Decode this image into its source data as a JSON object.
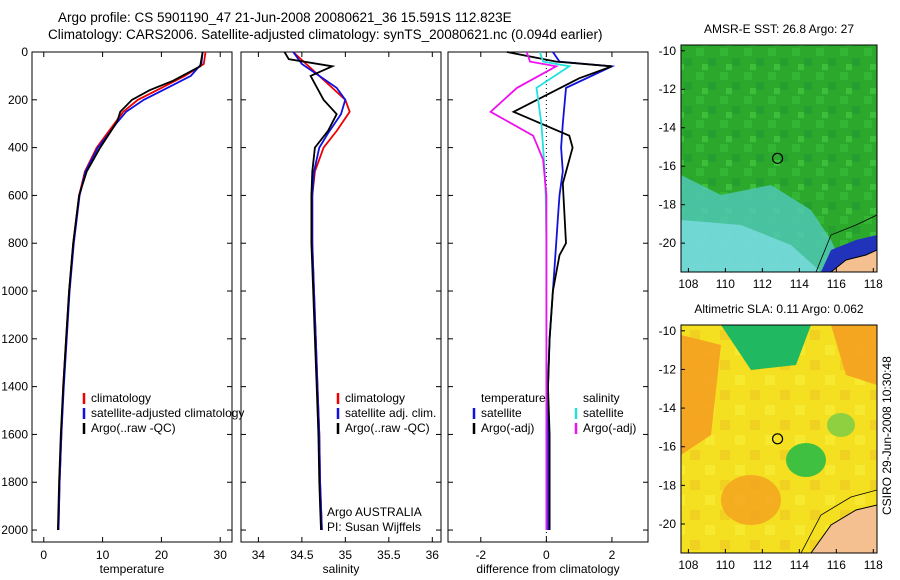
{
  "header": {
    "line1": "Argo profile: CS 5901190_47 21-Jun-2008 20080621_36 15.591S 112.823E",
    "line2": "Climatology: CARS2006. Satellite-adjusted climatology: synTS_20080621.nc (0.094d earlier)"
  },
  "side_stamp": "CSIRO 29-Jun-2008 10:30:48",
  "colors": {
    "climatology": "#ee0000",
    "satellite": "#1111dd",
    "argo": "#000000",
    "sal_satellite": "#22e0e0",
    "sal_argo": "#ee11ee",
    "land": "#f5c090"
  },
  "chart_data": [
    {
      "type": "line",
      "panel": "temperature",
      "xlabel": "temperature",
      "ylabel": "",
      "xlim": [
        -2,
        32
      ],
      "ylim": [
        0,
        2050
      ],
      "y_reversed": true,
      "xticks": [
        0,
        10,
        20,
        30
      ],
      "yticks": [
        0,
        200,
        400,
        600,
        800,
        1000,
        1200,
        1400,
        1600,
        1800,
        2000
      ],
      "legend": [
        "climatology",
        "satellite-adjusted climatology",
        "Argo(..raw -QC)"
      ],
      "series": [
        {
          "name": "climatology",
          "color": "red",
          "x": [
            27.5,
            27.2,
            24,
            20,
            16,
            13.5,
            12,
            10.5,
            9,
            7,
            6,
            5,
            4.3,
            3.8,
            3.3,
            3,
            2.7,
            2.5
          ],
          "y": [
            0,
            50,
            100,
            150,
            200,
            250,
            300,
            350,
            400,
            500,
            600,
            800,
            1000,
            1200,
            1400,
            1600,
            1800,
            2000
          ]
        },
        {
          "name": "satellite-adjusted climatology",
          "color": "blue",
          "x": [
            27,
            26.8,
            25,
            21,
            17,
            14,
            12.3,
            10.8,
            9.2,
            7.1,
            6.1,
            5.1,
            4.4,
            3.9,
            3.4,
            3,
            2.7,
            2.5
          ],
          "y": [
            0,
            50,
            100,
            150,
            200,
            250,
            300,
            350,
            400,
            500,
            600,
            800,
            1000,
            1200,
            1400,
            1600,
            1800,
            2000
          ]
        },
        {
          "name": "Argo(..raw -QC)",
          "color": "black",
          "x": [
            27,
            26.6,
            22,
            18,
            15,
            13,
            12.5,
            11.2,
            9.6,
            7.3,
            6,
            5,
            4.3,
            3.8,
            3.3,
            2.9,
            2.6,
            2.4
          ],
          "y": [
            0,
            60,
            120,
            160,
            200,
            250,
            290,
            340,
            400,
            500,
            600,
            800,
            1000,
            1200,
            1400,
            1600,
            1800,
            2000
          ]
        }
      ]
    },
    {
      "type": "line",
      "panel": "salinity",
      "xlabel": "salinity",
      "xlim": [
        33.8,
        36.1
      ],
      "ylim": [
        0,
        2050
      ],
      "y_reversed": true,
      "xticks": [
        34,
        34.5,
        35,
        35.5,
        36
      ],
      "legend": [
        "climatology",
        "satellite adj. clim.",
        "Argo(..raw -QC)"
      ],
      "annotation": [
        "Argo AUSTRALIA",
        "PI: Susan Wijffels"
      ],
      "series": [
        {
          "name": "climatology",
          "color": "red",
          "x": [
            34.4,
            34.55,
            34.7,
            34.85,
            35.0,
            35.05,
            34.9,
            34.75,
            34.65,
            34.62,
            34.62,
            34.64,
            34.66,
            34.68,
            34.7,
            34.71,
            34.72,
            34.73
          ],
          "y": [
            0,
            50,
            100,
            150,
            200,
            250,
            330,
            400,
            500,
            600,
            800,
            1000,
            1200,
            1400,
            1600,
            1800,
            1900,
            2000
          ]
        },
        {
          "name": "satellite adj. clim.",
          "color": "blue",
          "x": [
            34.4,
            34.5,
            34.7,
            34.9,
            35.0,
            34.95,
            34.8,
            34.7,
            34.64,
            34.62,
            34.62,
            34.64,
            34.66,
            34.68,
            34.7,
            34.71,
            34.72,
            34.73
          ],
          "y": [
            0,
            50,
            100,
            150,
            200,
            260,
            340,
            400,
            500,
            600,
            800,
            1000,
            1200,
            1400,
            1600,
            1800,
            1900,
            2000
          ]
        },
        {
          "name": "Argo(..raw -QC)",
          "color": "black",
          "x": [
            34.3,
            34.35,
            34.85,
            34.6,
            34.75,
            34.9,
            34.8,
            34.65,
            34.62,
            34.61,
            34.61,
            34.63,
            34.65,
            34.67,
            34.69,
            34.7,
            34.71,
            34.72
          ],
          "y": [
            0,
            30,
            60,
            100,
            200,
            260,
            330,
            400,
            500,
            600,
            800,
            1000,
            1200,
            1400,
            1600,
            1800,
            1900,
            2000
          ]
        }
      ]
    },
    {
      "type": "line",
      "panel": "difference",
      "xlabel": "difference from climatology",
      "xlim": [
        -3,
        3.1
      ],
      "ylim": [
        0,
        2050
      ],
      "y_reversed": true,
      "xticks": [
        -2,
        0,
        2
      ],
      "legend_left_title": "temperature",
      "legend_right_title": "salinity",
      "legend": [
        "satellite",
        "Argo(-adj)",
        "satellite",
        "Argo(-adj)"
      ],
      "series": [
        {
          "name": "temperature satellite",
          "color": "blue",
          "x": [
            0.2,
            0.4,
            2.0,
            0.6,
            0.5,
            0.45,
            0.5,
            0.4,
            0.35,
            0.3,
            0.2,
            0.1,
            0.05,
            0.05,
            0.05,
            0.05
          ],
          "y": [
            0,
            40,
            60,
            150,
            300,
            400,
            500,
            600,
            700,
            800,
            1000,
            1200,
            1400,
            1600,
            1800,
            2000
          ]
        },
        {
          "name": "temperature Argo(-adj)",
          "color": "black",
          "x": [
            -1.2,
            0.3,
            2.0,
            1.0,
            -1.0,
            0.7,
            0.8,
            0.5,
            0.6,
            0.4,
            0.2,
            0.1,
            0.05,
            0.1,
            0.1,
            0.1
          ],
          "y": [
            0,
            40,
            60,
            110,
            250,
            350,
            400,
            550,
            800,
            850,
            1000,
            1200,
            1400,
            1600,
            1800,
            2000
          ]
        },
        {
          "name": "salinity satellite",
          "color": "cyan",
          "x": [
            -0.2,
            -0.1,
            0.7,
            -0.3,
            -0.15,
            -0.1,
            -0.05,
            -0.02,
            0,
            0,
            0,
            0
          ],
          "y": [
            0,
            40,
            60,
            150,
            300,
            400,
            500,
            600,
            800,
            1200,
            1600,
            2000
          ]
        },
        {
          "name": "salinity Argo(-adj)",
          "color": "magenta",
          "x": [
            -0.6,
            -0.5,
            0.3,
            -0.9,
            -1.7,
            -0.4,
            -0.1,
            0,
            0,
            0,
            0
          ],
          "y": [
            0,
            40,
            60,
            150,
            250,
            350,
            450,
            600,
            800,
            1400,
            2000
          ]
        }
      ]
    },
    {
      "type": "heatmap",
      "panel": "sst_map",
      "title": "AMSR-E SST: 26.8 Argo: 27",
      "xlim": [
        107.6,
        118.2
      ],
      "ylim": [
        -21.5,
        -9.7
      ],
      "xticks": [
        108,
        110,
        112,
        114,
        116,
        118
      ],
      "yticks": [
        -10,
        -12,
        -14,
        -16,
        -18,
        -20
      ],
      "marker": {
        "lon": 112.823,
        "lat": -15.591
      }
    },
    {
      "type": "heatmap",
      "panel": "sla_map",
      "title": "Altimetric SLA: 0.11 Argo: 0.062",
      "xlim": [
        107.6,
        118.2
      ],
      "ylim": [
        -21.5,
        -9.7
      ],
      "xticks": [
        108,
        110,
        112,
        114,
        116,
        118
      ],
      "yticks": [
        -10,
        -12,
        -14,
        -16,
        -18,
        -20
      ],
      "marker": {
        "lon": 112.823,
        "lat": -15.591
      }
    }
  ]
}
